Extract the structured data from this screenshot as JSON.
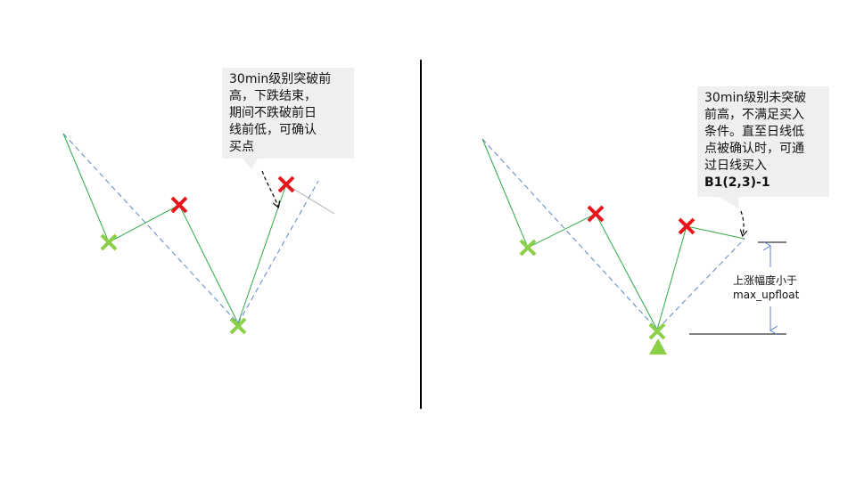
{
  "left_panel": {
    "callout_lines": [
      "30min级别突破前",
      "高，下跌结束，",
      "期间不跌破前日",
      "线前低，可确认",
      "买点"
    ]
  },
  "right_panel": {
    "callout_lines": [
      "30min级别未突破",
      "前高，不满足买入",
      "条件。直至日线低",
      "点被确认时，可通",
      "过日线买入"
    ],
    "callout_bold": "B1(2,3)-1",
    "annotation_lines": [
      "上涨幅度小于",
      "max_upfloat"
    ]
  },
  "colors": {
    "zigzag": "#2eaa4a",
    "trend_dashed": "#5b86c4",
    "low_marker": "#8cd04a",
    "high_marker": "#e8151b",
    "divider": "#000000",
    "extension": "#b0b0b0",
    "callout_bg": "#efefef"
  },
  "icons": {
    "low_marker": "green-x-icon",
    "high_marker": "red-x-icon",
    "buy_marker": "green-triangle-icon"
  }
}
